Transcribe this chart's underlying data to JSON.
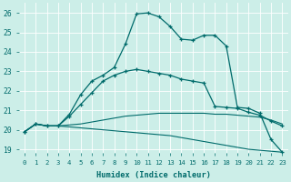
{
  "bg_color": "#cceee8",
  "grid_color": "#ffffff",
  "line_color": "#006b6b",
  "xlabel": "Humidex (Indice chaleur)",
  "ylim": [
    18.8,
    26.5
  ],
  "xlim": [
    -0.5,
    23.5
  ],
  "yticks": [
    19,
    20,
    21,
    22,
    23,
    24,
    25,
    26
  ],
  "xticks": [
    0,
    1,
    2,
    3,
    4,
    5,
    6,
    7,
    8,
    9,
    10,
    11,
    12,
    13,
    14,
    15,
    16,
    17,
    18,
    19,
    20,
    21,
    22,
    23
  ],
  "series1_nomark": {
    "x": [
      0,
      1,
      2,
      3,
      4,
      5,
      6,
      7,
      8,
      9,
      10,
      11,
      12,
      13,
      14,
      15,
      16,
      17,
      18,
      19,
      20,
      21,
      22,
      23
    ],
    "y": [
      19.9,
      20.3,
      20.2,
      20.2,
      20.15,
      20.1,
      20.05,
      20.0,
      19.95,
      19.9,
      19.85,
      19.8,
      19.75,
      19.7,
      19.6,
      19.5,
      19.4,
      19.3,
      19.2,
      19.1,
      19.0,
      18.95,
      18.9,
      18.85
    ]
  },
  "series2_nomark": {
    "x": [
      0,
      1,
      2,
      3,
      4,
      5,
      6,
      7,
      8,
      9,
      10,
      11,
      12,
      13,
      14,
      15,
      16,
      17,
      18,
      19,
      20,
      21,
      22,
      23
    ],
    "y": [
      19.9,
      20.3,
      20.2,
      20.2,
      20.25,
      20.3,
      20.4,
      20.5,
      20.6,
      20.7,
      20.75,
      20.8,
      20.85,
      20.85,
      20.85,
      20.85,
      20.85,
      20.8,
      20.8,
      20.75,
      20.7,
      20.65,
      20.5,
      20.3
    ]
  },
  "series3_mark": {
    "x": [
      0,
      1,
      2,
      3,
      4,
      5,
      6,
      7,
      8,
      9,
      10,
      11,
      12,
      13,
      14,
      15,
      16,
      17,
      18,
      19,
      20,
      21,
      22,
      23
    ],
    "y": [
      19.9,
      20.3,
      20.2,
      20.2,
      20.7,
      21.3,
      21.9,
      22.5,
      22.8,
      23.0,
      23.1,
      23.0,
      22.9,
      22.8,
      22.6,
      22.5,
      22.4,
      21.2,
      21.15,
      21.1,
      20.9,
      20.75,
      20.45,
      20.2
    ]
  },
  "series4_mark": {
    "x": [
      0,
      1,
      2,
      3,
      4,
      5,
      6,
      7,
      8,
      9,
      10,
      11,
      12,
      13,
      14,
      15,
      16,
      17,
      18,
      19,
      20,
      21,
      22,
      23
    ],
    "y": [
      19.9,
      20.3,
      20.2,
      20.2,
      20.8,
      21.8,
      22.5,
      22.8,
      23.2,
      24.4,
      25.95,
      26.0,
      25.8,
      25.3,
      24.65,
      24.6,
      24.85,
      24.85,
      24.3,
      21.15,
      21.1,
      20.85,
      19.5,
      18.85
    ]
  }
}
